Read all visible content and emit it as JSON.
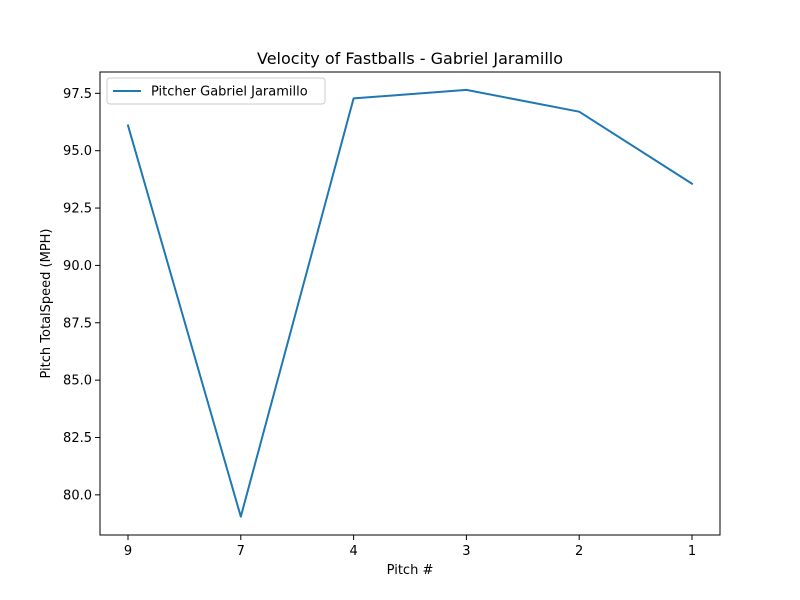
{
  "chart_data": {
    "type": "line",
    "title": "Velocity of Fastballs - Gabriel Jaramillo",
    "xlabel": "Pitch #",
    "ylabel": "Pitch TotalSpeed (MPH)",
    "categories": [
      "9",
      "7",
      "4",
      "3",
      "2",
      "1"
    ],
    "series": [
      {
        "name": "Pitcher Gabriel Jaramillo",
        "color": "#1f77b4",
        "values": [
          96.1,
          79.05,
          97.28,
          97.65,
          96.7,
          93.56
        ]
      }
    ],
    "ylim": [
      78.25,
      98.43
    ],
    "yticks": [
      80.0,
      82.5,
      85.0,
      87.5,
      90.0,
      92.5,
      95.0,
      97.5
    ],
    "ytick_labels": [
      "80.0",
      "82.5",
      "85.0",
      "87.5",
      "90.0",
      "92.5",
      "95.0",
      "97.5"
    ],
    "legend": "top-left",
    "grid": false
  }
}
